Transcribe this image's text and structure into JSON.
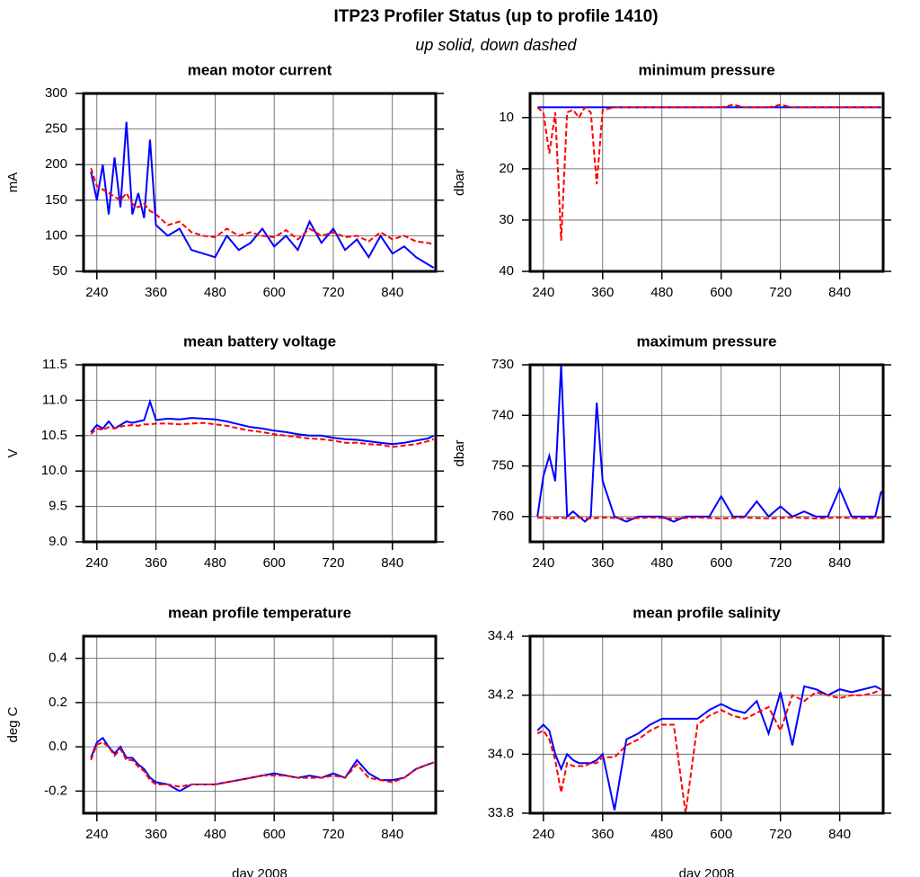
{
  "title": "ITP23 Profiler Status (up to profile 1410)",
  "subtitle": "up solid, down dashed",
  "chart_data": [
    {
      "type": "line",
      "title": "mean motor current",
      "ylabel": "mA",
      "x": [
        228,
        240,
        252,
        264,
        276,
        288,
        300,
        312,
        324,
        336,
        348,
        360,
        384,
        408,
        432,
        456,
        480,
        504,
        528,
        552,
        576,
        600,
        624,
        648,
        672,
        696,
        720,
        744,
        768,
        792,
        816,
        840,
        864,
        888,
        912,
        924
      ],
      "xlim": [
        213,
        928
      ],
      "xticks": [
        240,
        360,
        480,
        600,
        720,
        840
      ],
      "ylim": [
        50,
        300
      ],
      "yticks": [
        50,
        100,
        150,
        200,
        250,
        300
      ],
      "grid": true,
      "series": [
        {
          "color": "#0000ff",
          "linestyle": "solid",
          "values": [
            190,
            150,
            200,
            130,
            210,
            140,
            260,
            130,
            160,
            125,
            235,
            115,
            100,
            110,
            80,
            75,
            70,
            100,
            80,
            90,
            110,
            85,
            100,
            80,
            120,
            90,
            110,
            80,
            95,
            70,
            100,
            75,
            85,
            70,
            60,
            55
          ]
        },
        {
          "color": "#ff0000",
          "linestyle": "dashed",
          "values": [
            195,
            170,
            165,
            160,
            155,
            150,
            160,
            145,
            140,
            145,
            135,
            130,
            115,
            120,
            105,
            100,
            98,
            110,
            100,
            105,
            100,
            98,
            108,
            95,
            110,
            100,
            105,
            98,
            100,
            92,
            105,
            95,
            100,
            92,
            90,
            88
          ]
        }
      ]
    },
    {
      "type": "line",
      "title": "minimum pressure",
      "ylabel": "dbar",
      "x": [
        228,
        240,
        252,
        264,
        276,
        288,
        300,
        312,
        324,
        336,
        348,
        360,
        384,
        408,
        432,
        456,
        480,
        504,
        528,
        552,
        576,
        600,
        624,
        648,
        672,
        696,
        720,
        744,
        768,
        792,
        816,
        840,
        864,
        888,
        912,
        924
      ],
      "xlim": [
        213,
        928
      ],
      "xticks": [
        240,
        360,
        480,
        600,
        720,
        840
      ],
      "ylim": [
        40,
        5.3
      ],
      "yticks": [
        10,
        20,
        30,
        40
      ],
      "grid": true,
      "series": [
        {
          "color": "#0000ff",
          "linestyle": "solid",
          "values": [
            8,
            8,
            8,
            8,
            8,
            8,
            8,
            8,
            8,
            8,
            8,
            8,
            8,
            8,
            8,
            8,
            8,
            8,
            8,
            8,
            8,
            8,
            8,
            8,
            8,
            8,
            8,
            8,
            8,
            8,
            8,
            8,
            8,
            8,
            8,
            8
          ]
        },
        {
          "color": "#ff0000",
          "linestyle": "dashed",
          "values": [
            8,
            9,
            17,
            9,
            34,
            9,
            8.5,
            10,
            8,
            9,
            23,
            8.5,
            8,
            8,
            8,
            8,
            8,
            8,
            8,
            8,
            8,
            8,
            7.5,
            8,
            8,
            8,
            7.5,
            8,
            8,
            8,
            8,
            8,
            8,
            8,
            8,
            8
          ]
        }
      ]
    },
    {
      "type": "line",
      "title": "mean battery voltage",
      "ylabel": "V",
      "x": [
        228,
        240,
        252,
        264,
        276,
        288,
        300,
        312,
        324,
        336,
        348,
        360,
        384,
        408,
        432,
        456,
        480,
        504,
        528,
        552,
        576,
        600,
        624,
        648,
        672,
        696,
        720,
        744,
        768,
        792,
        816,
        840,
        864,
        888,
        912,
        924
      ],
      "xlim": [
        213,
        928
      ],
      "xticks": [
        240,
        360,
        480,
        600,
        720,
        840
      ],
      "ylim": [
        9,
        11.5
      ],
      "yticks": [
        {
          "value": 9,
          "label": "9.0"
        },
        9.5,
        {
          "value": 10,
          "label": "10.0"
        },
        10.5,
        {
          "value": 11,
          "label": "11.0"
        },
        11.5
      ],
      "grid": true,
      "series": [
        {
          "color": "#0000ff",
          "linestyle": "solid",
          "values": [
            10.55,
            10.65,
            10.6,
            10.7,
            10.6,
            10.65,
            10.7,
            10.68,
            10.7,
            10.72,
            10.98,
            10.72,
            10.74,
            10.73,
            10.75,
            10.74,
            10.73,
            10.7,
            10.66,
            10.62,
            10.6,
            10.57,
            10.55,
            10.52,
            10.5,
            10.5,
            10.47,
            10.45,
            10.44,
            10.42,
            10.4,
            10.38,
            10.4,
            10.43,
            10.46,
            10.5
          ]
        },
        {
          "color": "#ff0000",
          "linestyle": "dashed",
          "values": [
            10.52,
            10.6,
            10.58,
            10.62,
            10.6,
            10.63,
            10.64,
            10.65,
            10.64,
            10.66,
            10.66,
            10.67,
            10.67,
            10.66,
            10.67,
            10.68,
            10.66,
            10.64,
            10.6,
            10.57,
            10.55,
            10.52,
            10.5,
            10.48,
            10.46,
            10.45,
            10.43,
            10.4,
            10.4,
            10.38,
            10.37,
            10.34,
            10.36,
            10.38,
            10.42,
            10.45
          ]
        }
      ]
    },
    {
      "type": "line",
      "title": "maximum pressure",
      "ylabel": "dbar",
      "x": [
        228,
        240,
        252,
        264,
        276,
        288,
        300,
        312,
        324,
        336,
        348,
        360,
        384,
        408,
        432,
        456,
        480,
        504,
        528,
        552,
        576,
        600,
        624,
        648,
        672,
        696,
        720,
        744,
        768,
        792,
        816,
        840,
        864,
        888,
        912,
        924
      ],
      "xlim": [
        213,
        928
      ],
      "xticks": [
        240,
        360,
        480,
        600,
        720,
        840
      ],
      "ylim": [
        765,
        730
      ],
      "yticks": [
        730,
        740,
        750,
        760
      ],
      "grid": true,
      "series": [
        {
          "color": "#0000ff",
          "linestyle": "solid",
          "values": [
            760,
            752,
            748,
            753,
            730,
            760,
            759,
            760,
            761,
            760,
            737.5,
            753,
            760,
            761,
            760,
            760,
            760,
            761,
            760,
            760,
            760,
            756,
            760,
            760,
            757,
            760,
            758,
            760,
            759,
            760,
            760,
            754.5,
            760,
            760,
            760,
            755
          ]
        },
        {
          "color": "#ff0000",
          "linestyle": "dashed",
          "values": [
            760.3,
            760.2,
            760.4,
            760.3,
            760.2,
            760.4,
            760.3,
            760.2,
            760.3,
            760.4,
            760.3,
            760.2,
            760.3,
            760.4,
            760.3,
            760.2,
            760.3,
            760.4,
            760.3,
            760.2,
            760.3,
            760.4,
            760.3,
            760.2,
            760.3,
            760.4,
            760.3,
            760.2,
            760.3,
            760.4,
            760.3,
            760.2,
            760.3,
            760.4,
            760.3,
            760.2
          ]
        }
      ]
    },
    {
      "type": "line",
      "title": "mean profile temperature",
      "ylabel": "deg C",
      "xlabel": "day 2008",
      "x": [
        228,
        240,
        252,
        264,
        276,
        288,
        300,
        312,
        324,
        336,
        348,
        360,
        384,
        408,
        432,
        456,
        480,
        504,
        528,
        552,
        576,
        600,
        624,
        648,
        672,
        696,
        720,
        744,
        768,
        792,
        816,
        840,
        864,
        888,
        912,
        924
      ],
      "xlim": [
        213,
        928
      ],
      "xticks": [
        240,
        360,
        480,
        600,
        720,
        840
      ],
      "ylim": [
        -0.3,
        0.5
      ],
      "yticks": [
        -0.2,
        {
          "value": 0,
          "label": "0.0"
        },
        0.2,
        0.4
      ],
      "grid": true,
      "series": [
        {
          "color": "#0000ff",
          "linestyle": "solid",
          "values": [
            -0.05,
            0.02,
            0.04,
            0,
            -0.03,
            0,
            -0.05,
            -0.05,
            -0.08,
            -0.1,
            -0.14,
            -0.16,
            -0.17,
            -0.2,
            -0.17,
            -0.17,
            -0.17,
            -0.16,
            -0.15,
            -0.14,
            -0.13,
            -0.12,
            -0.13,
            -0.14,
            -0.13,
            -0.14,
            -0.12,
            -0.14,
            -0.06,
            -0.12,
            -0.15,
            -0.15,
            -0.14,
            -0.1,
            -0.08,
            -0.07
          ]
        },
        {
          "color": "#ff0000",
          "linestyle": "dashed",
          "values": [
            -0.06,
            0.01,
            0.02,
            0,
            -0.04,
            -0.01,
            -0.06,
            -0.06,
            -0.09,
            -0.11,
            -0.15,
            -0.17,
            -0.17,
            -0.18,
            -0.17,
            -0.17,
            -0.17,
            -0.16,
            -0.15,
            -0.14,
            -0.13,
            -0.13,
            -0.13,
            -0.14,
            -0.14,
            -0.14,
            -0.13,
            -0.14,
            -0.08,
            -0.14,
            -0.15,
            -0.16,
            -0.14,
            -0.1,
            -0.08,
            -0.07
          ]
        }
      ]
    },
    {
      "type": "line",
      "title": "mean profile salinity",
      "xlabel": "day 2008",
      "x": [
        228,
        240,
        252,
        264,
        276,
        288,
        300,
        312,
        324,
        336,
        348,
        360,
        384,
        408,
        432,
        456,
        480,
        504,
        528,
        552,
        576,
        600,
        624,
        648,
        672,
        696,
        720,
        744,
        768,
        792,
        816,
        840,
        864,
        888,
        912,
        924
      ],
      "xlim": [
        213,
        928
      ],
      "xticks": [
        240,
        360,
        480,
        600,
        720,
        840
      ],
      "ylim": [
        33.8,
        34.4
      ],
      "yticks": [
        33.8,
        {
          "value": 34,
          "label": "34.0"
        },
        34.2,
        34.4
      ],
      "grid": true,
      "series": [
        {
          "color": "#0000ff",
          "linestyle": "solid",
          "values": [
            34.08,
            34.1,
            34.08,
            34,
            33.95,
            34,
            33.98,
            33.97,
            33.97,
            33.97,
            33.98,
            34,
            33.81,
            34.05,
            34.07,
            34.1,
            34.12,
            34.12,
            34.12,
            34.12,
            34.15,
            34.17,
            34.15,
            34.14,
            34.18,
            34.07,
            34.21,
            34.03,
            34.23,
            34.22,
            34.2,
            34.22,
            34.21,
            34.22,
            34.23,
            34.22
          ]
        },
        {
          "color": "#ff0000",
          "linestyle": "dashed",
          "values": [
            34.07,
            34.08,
            34.05,
            33.98,
            33.87,
            33.97,
            33.96,
            33.96,
            33.96,
            33.97,
            33.97,
            33.99,
            33.99,
            34.03,
            34.05,
            34.08,
            34.1,
            34.1,
            33.8,
            34.1,
            34.13,
            34.15,
            34.13,
            34.12,
            34.14,
            34.16,
            34.08,
            34.2,
            34.18,
            34.21,
            34.2,
            34.19,
            34.2,
            34.2,
            34.21,
            34.22
          ]
        }
      ]
    }
  ]
}
